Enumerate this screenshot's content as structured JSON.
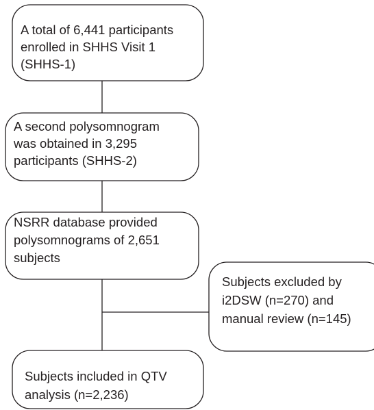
{
  "nodes": [
    {
      "lines": [
        "A total of 6,441 participants",
        "enrolled in SHHS Visit 1",
        "(SHHS-1)"
      ]
    },
    {
      "lines": [
        "A second polysomnogram",
        "was obtained in 3,295",
        "participants (SHHS-2)"
      ]
    },
    {
      "lines": [
        "NSRR database provided",
        "polysomnograms of 2,651",
        "subjects"
      ]
    },
    {
      "lines": [
        "Subjects excluded by",
        "i2DSW (n=270) and",
        "manual review (n=145)"
      ]
    },
    {
      "lines": [
        "Subjects included in QTV",
        "analysis (n=2,236)"
      ]
    }
  ]
}
